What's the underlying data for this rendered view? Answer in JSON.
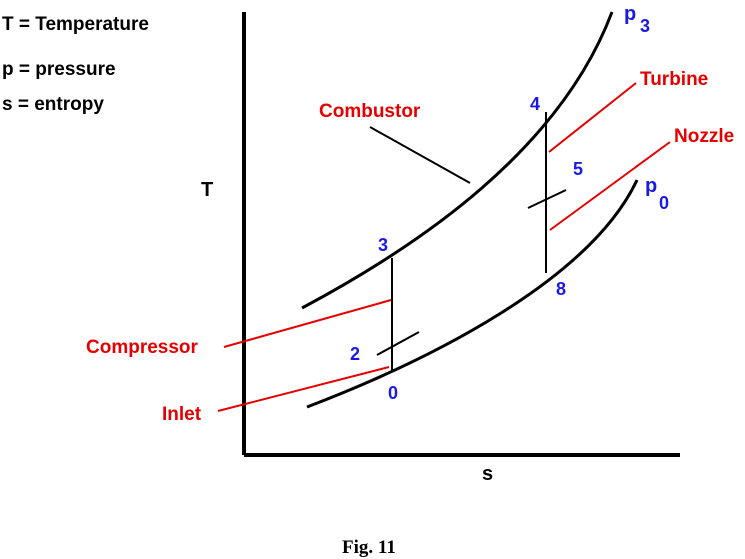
{
  "legend": {
    "line1": "T = Temperature",
    "line2": "p = pressure",
    "line3": "s = entropy"
  },
  "axes": {
    "y_label": "T",
    "x_label": "s"
  },
  "components": {
    "combustor": "Combustor",
    "turbine": "Turbine",
    "nozzle": "Nozzle",
    "compressor": "Compressor",
    "inlet": "Inlet"
  },
  "points": {
    "p0": "0",
    "p2": "2",
    "p3": "3",
    "p4": "4",
    "p5": "5",
    "p8": "8"
  },
  "curves": {
    "upper_main": "p",
    "upper_sub": "3",
    "lower_main": "p",
    "lower_sub": "0"
  },
  "caption": "Fig. 11",
  "colors": {
    "label_red": "#e60000",
    "point_blue": "#1a1ae6",
    "line_black": "#000000"
  }
}
